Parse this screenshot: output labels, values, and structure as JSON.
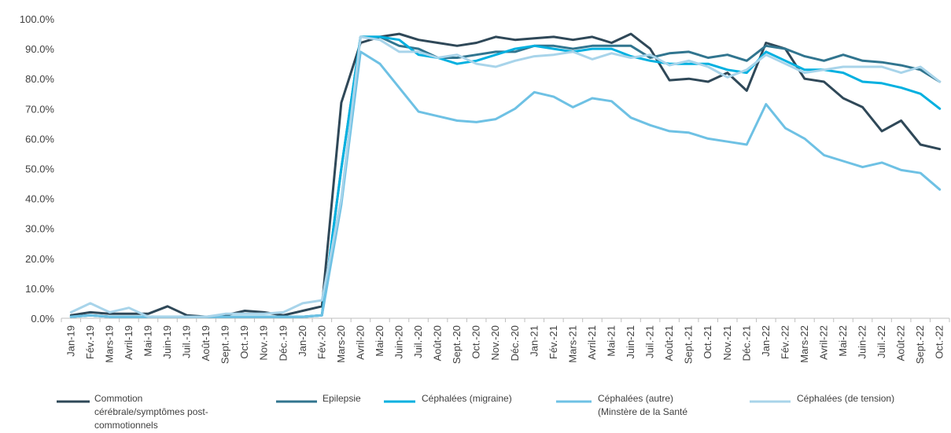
{
  "chart_data": {
    "type": "line",
    "title": "",
    "xlabel": "",
    "ylabel": "",
    "ylim": [
      0,
      100
    ],
    "yticks": [
      "0.0%",
      "10.0%",
      "20.0%",
      "30.0%",
      "40.0%",
      "50.0%",
      "60.0%",
      "70.0%",
      "80.0%",
      "90.0%",
      "100.0%"
    ],
    "grid": false,
    "legend_position": "bottom",
    "categories": [
      "Jan-19",
      "Fév.-19",
      "Mars-19",
      "Avril-19",
      "Mai-19",
      "Juin-19",
      "Juil.-19",
      "Août-19",
      "Sept.-19",
      "Oct.-19",
      "Nov.-19",
      "Déc.-19",
      "Jan-20",
      "Fév.-20",
      "Mars-20",
      "Avril-20",
      "Mai-20",
      "Juin-20",
      "Juil.-20",
      "Août-20",
      "Sept.-20",
      "Oct.-20",
      "Nov.-20",
      "Déc.-20",
      "Jan-21",
      "Fév.-21",
      "Mars-21",
      "Avril-21",
      "Mai-21",
      "Juin-21",
      "Juil.-21",
      "Août-21",
      "Sept.-21",
      "Oct.-21",
      "Nov.-21",
      "Déc.-21",
      "Jan-22",
      "Fév.-22",
      "Mars-22",
      "Avril-22",
      "Mai-22",
      "Juin-22",
      "Juil.-22",
      "Août-22",
      "Sept.-22",
      "Oct.-22"
    ],
    "series": [
      {
        "name": "Commotion cérébrale/symptômes post-commotionnels",
        "name_lines": [
          "Commotion",
          "cérébrale/symptômes post-",
          "commotionnels"
        ],
        "color": "#2f4858",
        "values": [
          1,
          2,
          1.5,
          1.5,
          1.5,
          4,
          1,
          0.5,
          1,
          2.5,
          2,
          1,
          2.5,
          4,
          72,
          92,
          94,
          95,
          93,
          92,
          91,
          92,
          94,
          93,
          93.5,
          94,
          93,
          94,
          92,
          95,
          90,
          79.5,
          80,
          79,
          82,
          76,
          92,
          90,
          80,
          79,
          73.5,
          70.5,
          62.5,
          66,
          58,
          56.5
        ]
      },
      {
        "name": "Epilepsie",
        "name_lines": [
          "Epilepsie"
        ],
        "color": "#31758f",
        "values": [
          0.5,
          1,
          0.5,
          0.5,
          0.5,
          0.5,
          0.5,
          0.5,
          0.5,
          0.5,
          0.5,
          0.5,
          0.5,
          1,
          50,
          94,
          94,
          91,
          90,
          87,
          87,
          88,
          89,
          89,
          91,
          91,
          90,
          91,
          91,
          91,
          87,
          88.5,
          89,
          87,
          88,
          86,
          91,
          90,
          87.5,
          86,
          88,
          86,
          85.5,
          84.5,
          83,
          79
        ]
      },
      {
        "name": "Céphalées (migraine)",
        "name_lines": [
          "Céphalées (migraine)"
        ],
        "color": "#00b0e0",
        "values": [
          0.5,
          1,
          0.5,
          0.5,
          0.5,
          0.5,
          0.5,
          0.5,
          0.5,
          0.5,
          0.5,
          0.5,
          0.5,
          1,
          50,
          94,
          94,
          93,
          88,
          87,
          85,
          86,
          88,
          90,
          91,
          90,
          89,
          90,
          90,
          87.5,
          86,
          85,
          85,
          85,
          83,
          82,
          89,
          86,
          83,
          83,
          82,
          79,
          78.5,
          77,
          75,
          70
        ]
      },
      {
        "name": "Céphalées (autre) (Minstère de la Santé",
        "name_lines": [
          "Céphalées (autre)",
          "(Minstère de la Santé"
        ],
        "color": "#6ec1e4",
        "values": [
          0.5,
          1,
          0.5,
          0.5,
          0.5,
          0.5,
          0.5,
          0.5,
          0.5,
          0.5,
          0.5,
          0.5,
          0.5,
          1,
          38,
          89,
          85,
          77,
          69,
          67.5,
          66,
          65.5,
          66.5,
          70,
          75.5,
          74,
          70.5,
          73.5,
          72.5,
          67,
          64.5,
          62.5,
          62,
          60,
          59,
          58,
          71.5,
          63.5,
          60,
          54.5,
          52.5,
          50.5,
          52,
          49.5,
          48.5,
          43
        ]
      },
      {
        "name": "Céphalées (de tension)",
        "name_lines": [
          "Céphalées (de tension)"
        ],
        "color": "#a8d4ea",
        "values": [
          2,
          5,
          2,
          3.5,
          0.5,
          0.5,
          0.5,
          0.5,
          1.5,
          1.5,
          1.5,
          2,
          5,
          6,
          40,
          94,
          93,
          89,
          89,
          87,
          88,
          85,
          84,
          86,
          87.5,
          88,
          89,
          86.5,
          88.5,
          87,
          88,
          84.5,
          86,
          84,
          80.5,
          83,
          88,
          85,
          82,
          83,
          84,
          84,
          84,
          82,
          84,
          79
        ]
      }
    ]
  }
}
